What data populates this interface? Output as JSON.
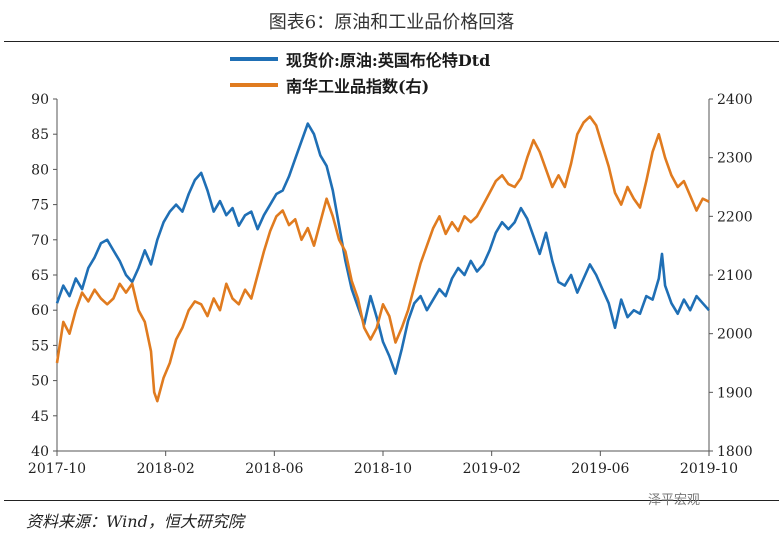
{
  "title": "图表6：原油和工业品价格回落",
  "source": "资料来源：Wind，恒大研究院",
  "watermark": "泽平宏观",
  "chart_data": {
    "type": "line",
    "x_tick_labels": [
      "2017-10",
      "2018-02",
      "2018-06",
      "2018-10",
      "2019-02",
      "2019-06",
      "2019-10"
    ],
    "x_range": [
      "2017-10",
      "2019-10"
    ],
    "y_left": {
      "range": [
        40,
        90
      ],
      "ticks": [
        40,
        45,
        50,
        55,
        60,
        65,
        70,
        75,
        80,
        85,
        90
      ]
    },
    "y_right": {
      "range": [
        1800,
        2400
      ],
      "ticks": [
        1800,
        1900,
        2000,
        2100,
        2200,
        2300,
        2400
      ]
    },
    "grid": false,
    "legend_position": "top-center",
    "series": [
      {
        "name": "现货价:原油:英国布伦特Dtd",
        "axis": "left",
        "color": "#1f6fb5",
        "points": [
          [
            0.0,
            61.0
          ],
          [
            0.02,
            63.5
          ],
          [
            0.04,
            62.0
          ],
          [
            0.06,
            64.5
          ],
          [
            0.08,
            63.0
          ],
          [
            0.1,
            66.0
          ],
          [
            0.12,
            67.5
          ],
          [
            0.14,
            69.5
          ],
          [
            0.16,
            70.0
          ],
          [
            0.18,
            68.5
          ],
          [
            0.2,
            67.0
          ],
          [
            0.22,
            65.0
          ],
          [
            0.24,
            64.0
          ],
          [
            0.26,
            66.0
          ],
          [
            0.28,
            68.5
          ],
          [
            0.3,
            66.5
          ],
          [
            0.32,
            70.0
          ],
          [
            0.34,
            72.5
          ],
          [
            0.36,
            74.0
          ],
          [
            0.38,
            75.0
          ],
          [
            0.4,
            74.0
          ],
          [
            0.42,
            76.5
          ],
          [
            0.44,
            78.5
          ],
          [
            0.46,
            79.5
          ],
          [
            0.48,
            77.0
          ],
          [
            0.5,
            74.0
          ],
          [
            0.52,
            75.5
          ],
          [
            0.54,
            73.5
          ],
          [
            0.56,
            74.5
          ],
          [
            0.58,
            72.0
          ],
          [
            0.6,
            73.5
          ],
          [
            0.62,
            74.0
          ],
          [
            0.64,
            71.5
          ],
          [
            0.66,
            73.5
          ],
          [
            0.68,
            75.0
          ],
          [
            0.7,
            76.5
          ],
          [
            0.72,
            77.0
          ],
          [
            0.74,
            79.0
          ],
          [
            0.76,
            81.5
          ],
          [
            0.78,
            84.0
          ],
          [
            0.8,
            86.5
          ],
          [
            0.82,
            85.0
          ],
          [
            0.84,
            82.0
          ],
          [
            0.86,
            80.5
          ],
          [
            0.88,
            77.0
          ],
          [
            0.9,
            72.0
          ],
          [
            0.92,
            67.0
          ],
          [
            0.94,
            63.0
          ],
          [
            0.96,
            60.5
          ],
          [
            0.98,
            58.0
          ],
          [
            1.0,
            62.0
          ],
          [
            1.02,
            59.0
          ],
          [
            1.04,
            55.5
          ],
          [
            1.06,
            53.5
          ],
          [
            1.08,
            51.0
          ],
          [
            1.1,
            54.5
          ],
          [
            1.12,
            58.5
          ],
          [
            1.14,
            61.0
          ],
          [
            1.16,
            62.0
          ],
          [
            1.18,
            60.0
          ],
          [
            1.2,
            61.5
          ],
          [
            1.22,
            63.0
          ],
          [
            1.24,
            62.0
          ],
          [
            1.26,
            64.5
          ],
          [
            1.28,
            66.0
          ],
          [
            1.3,
            65.0
          ],
          [
            1.32,
            67.0
          ],
          [
            1.34,
            65.5
          ],
          [
            1.36,
            66.5
          ],
          [
            1.38,
            68.5
          ],
          [
            1.4,
            71.0
          ],
          [
            1.42,
            72.5
          ],
          [
            1.44,
            71.5
          ],
          [
            1.46,
            72.5
          ],
          [
            1.48,
            74.5
          ],
          [
            1.5,
            73.0
          ],
          [
            1.52,
            70.5
          ],
          [
            1.54,
            68.0
          ],
          [
            1.56,
            71.0
          ],
          [
            1.58,
            67.0
          ],
          [
            1.6,
            64.0
          ],
          [
            1.62,
            63.5
          ],
          [
            1.64,
            65.0
          ],
          [
            1.66,
            62.5
          ],
          [
            1.68,
            64.5
          ],
          [
            1.7,
            66.5
          ],
          [
            1.72,
            65.0
          ],
          [
            1.74,
            63.0
          ],
          [
            1.76,
            61.0
          ],
          [
            1.78,
            57.5
          ],
          [
            1.8,
            61.5
          ],
          [
            1.82,
            59.0
          ],
          [
            1.84,
            60.0
          ],
          [
            1.86,
            59.5
          ],
          [
            1.88,
            62.0
          ],
          [
            1.9,
            61.5
          ],
          [
            1.92,
            64.5
          ],
          [
            1.93,
            68.0
          ],
          [
            1.94,
            63.5
          ],
          [
            1.96,
            61.0
          ],
          [
            1.98,
            59.5
          ],
          [
            2.0,
            61.5
          ],
          [
            2.02,
            60.0
          ],
          [
            2.04,
            62.0
          ],
          [
            2.06,
            61.0
          ],
          [
            2.08,
            60.0
          ]
        ]
      },
      {
        "name": "南华工业品指数(右)",
        "axis": "right",
        "color": "#e07b1f",
        "points": [
          [
            0.0,
            1950
          ],
          [
            0.02,
            2020
          ],
          [
            0.04,
            2000
          ],
          [
            0.06,
            2040
          ],
          [
            0.08,
            2070
          ],
          [
            0.1,
            2055
          ],
          [
            0.12,
            2075
          ],
          [
            0.14,
            2060
          ],
          [
            0.16,
            2050
          ],
          [
            0.18,
            2060
          ],
          [
            0.2,
            2085
          ],
          [
            0.22,
            2070
          ],
          [
            0.24,
            2085
          ],
          [
            0.26,
            2040
          ],
          [
            0.28,
            2020
          ],
          [
            0.3,
            1970
          ],
          [
            0.31,
            1900
          ],
          [
            0.32,
            1885
          ],
          [
            0.34,
            1925
          ],
          [
            0.36,
            1950
          ],
          [
            0.38,
            1990
          ],
          [
            0.4,
            2010
          ],
          [
            0.42,
            2040
          ],
          [
            0.44,
            2055
          ],
          [
            0.46,
            2050
          ],
          [
            0.48,
            2030
          ],
          [
            0.5,
            2060
          ],
          [
            0.52,
            2040
          ],
          [
            0.54,
            2085
          ],
          [
            0.56,
            2060
          ],
          [
            0.58,
            2050
          ],
          [
            0.6,
            2075
          ],
          [
            0.62,
            2060
          ],
          [
            0.64,
            2100
          ],
          [
            0.66,
            2140
          ],
          [
            0.68,
            2175
          ],
          [
            0.7,
            2200
          ],
          [
            0.72,
            2210
          ],
          [
            0.74,
            2185
          ],
          [
            0.76,
            2195
          ],
          [
            0.78,
            2160
          ],
          [
            0.8,
            2180
          ],
          [
            0.82,
            2150
          ],
          [
            0.84,
            2190
          ],
          [
            0.86,
            2230
          ],
          [
            0.88,
            2200
          ],
          [
            0.9,
            2160
          ],
          [
            0.92,
            2140
          ],
          [
            0.94,
            2090
          ],
          [
            0.96,
            2060
          ],
          [
            0.98,
            2010
          ],
          [
            1.0,
            1990
          ],
          [
            1.02,
            2010
          ],
          [
            1.04,
            2050
          ],
          [
            1.06,
            2030
          ],
          [
            1.08,
            1985
          ],
          [
            1.1,
            2010
          ],
          [
            1.12,
            2040
          ],
          [
            1.14,
            2080
          ],
          [
            1.16,
            2120
          ],
          [
            1.18,
            2150
          ],
          [
            1.2,
            2180
          ],
          [
            1.22,
            2200
          ],
          [
            1.24,
            2170
          ],
          [
            1.26,
            2190
          ],
          [
            1.28,
            2175
          ],
          [
            1.3,
            2200
          ],
          [
            1.32,
            2190
          ],
          [
            1.34,
            2200
          ],
          [
            1.36,
            2220
          ],
          [
            1.38,
            2240
          ],
          [
            1.4,
            2260
          ],
          [
            1.42,
            2270
          ],
          [
            1.44,
            2255
          ],
          [
            1.46,
            2250
          ],
          [
            1.48,
            2265
          ],
          [
            1.5,
            2300
          ],
          [
            1.52,
            2330
          ],
          [
            1.54,
            2310
          ],
          [
            1.56,
            2280
          ],
          [
            1.58,
            2250
          ],
          [
            1.6,
            2270
          ],
          [
            1.62,
            2250
          ],
          [
            1.64,
            2290
          ],
          [
            1.66,
            2340
          ],
          [
            1.68,
            2360
          ],
          [
            1.7,
            2370
          ],
          [
            1.72,
            2355
          ],
          [
            1.74,
            2320
          ],
          [
            1.76,
            2285
          ],
          [
            1.78,
            2240
          ],
          [
            1.8,
            2220
          ],
          [
            1.82,
            2250
          ],
          [
            1.84,
            2230
          ],
          [
            1.86,
            2215
          ],
          [
            1.88,
            2260
          ],
          [
            1.9,
            2310
          ],
          [
            1.92,
            2340
          ],
          [
            1.94,
            2300
          ],
          [
            1.96,
            2270
          ],
          [
            1.98,
            2250
          ],
          [
            2.0,
            2260
          ],
          [
            2.02,
            2235
          ],
          [
            2.04,
            2210
          ],
          [
            2.06,
            2230
          ],
          [
            2.08,
            2225
          ]
        ]
      }
    ]
  }
}
